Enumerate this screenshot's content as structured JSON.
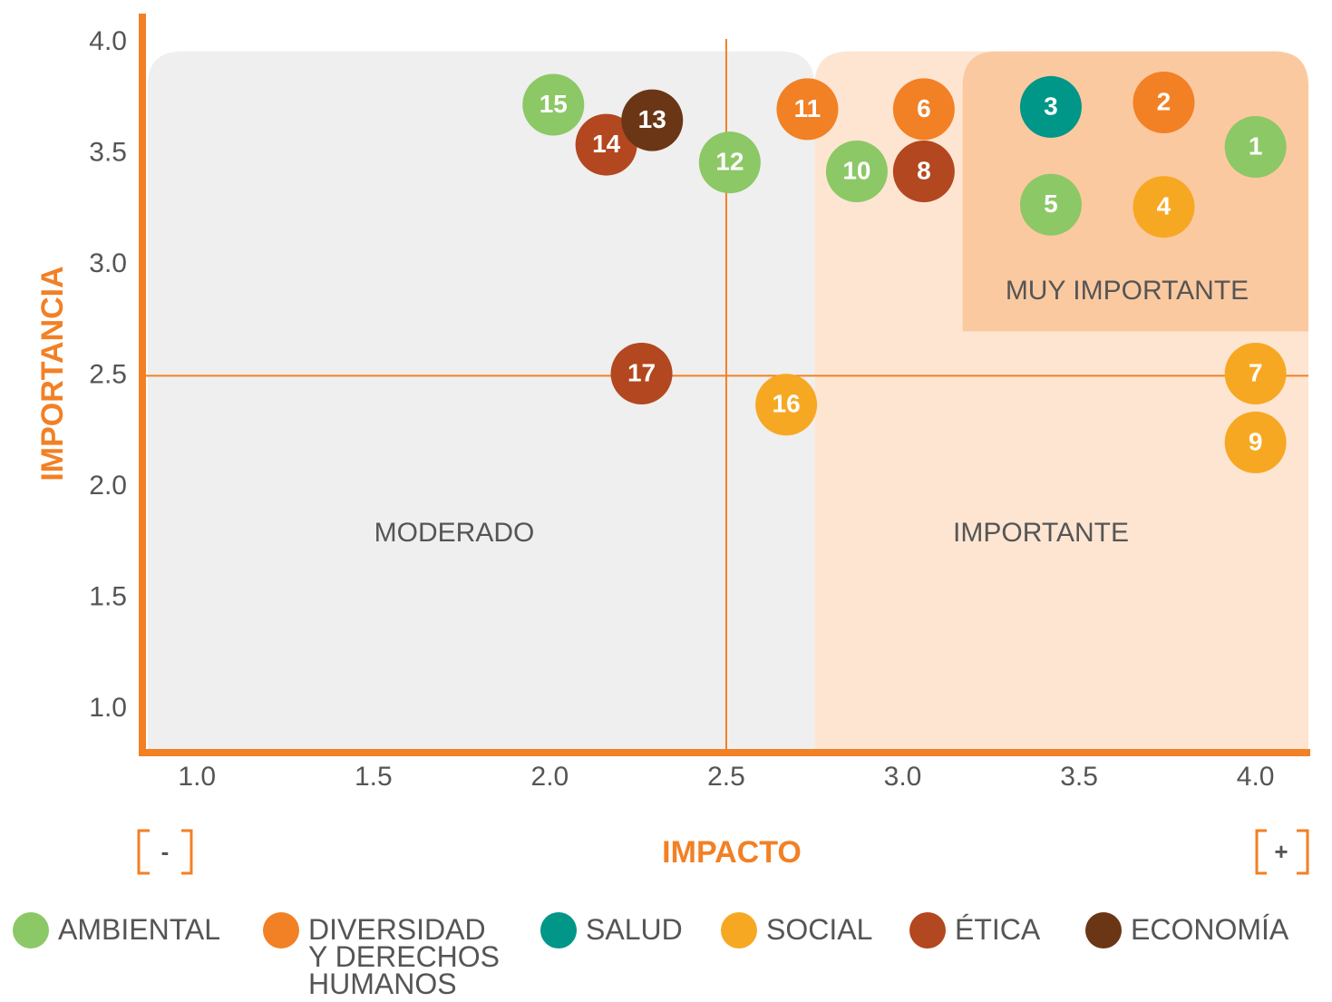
{
  "chart_data": {
    "type": "scatter",
    "x_label": "IMPACTO",
    "y_label": "IMPORTANCIA",
    "x_low_label": "-",
    "x_high_label": "+",
    "xlim": [
      0.84,
      4.15
    ],
    "ylim": [
      0.8,
      4.13
    ],
    "xticks": [
      {
        "value": 1,
        "label": "1.0"
      },
      1.5,
      {
        "value": 2,
        "label": "2.0"
      },
      2.5,
      {
        "value": 3,
        "label": "3.0"
      },
      3.5,
      {
        "value": 4,
        "label": "4.0"
      }
    ],
    "yticks": [
      {
        "value": 1,
        "label": "1.0"
      },
      1.5,
      {
        "value": 2,
        "label": "2.0"
      },
      2.5,
      {
        "value": 3,
        "label": "3.0"
      },
      3.5,
      {
        "value": 4,
        "label": "4.0"
      }
    ],
    "reference_lines": {
      "x": 2.5,
      "y": 2.5
    },
    "zones": [
      {
        "label": "MODERADO",
        "color": "#efefef",
        "xrange": [
          0.86,
          2.75
        ],
        "yrange": [
          0.8,
          3.96
        ]
      },
      {
        "label": "IMPORTANTE",
        "color": "#fde5d2",
        "xrange": [
          2.75,
          4.15
        ],
        "yrange": [
          0.8,
          3.96
        ]
      },
      {
        "label": "MUY IMPORTANTE",
        "color": "#fbc9a0",
        "xrange": [
          3.17,
          4.15
        ],
        "yrange": [
          2.7,
          3.96
        ]
      }
    ],
    "series": [
      {
        "name": "AMBIENTAL",
        "color": "#8cc866",
        "labels": [
          "1",
          "5",
          "10",
          "12",
          "15"
        ],
        "x": [
          4.0,
          3.42,
          2.87,
          2.51,
          2.01
        ],
        "y": [
          3.53,
          3.27,
          3.42,
          3.46,
          3.72
        ]
      },
      {
        "name": "DIVERSIDAD Y DERECHOS HUMANOS",
        "color": "#f28025",
        "labels": [
          "2",
          "6",
          "11"
        ],
        "x": [
          3.74,
          3.06,
          2.73
        ],
        "y": [
          3.73,
          3.7,
          3.7
        ]
      },
      {
        "name": "SALUD",
        "color": "#009688",
        "labels": [
          "3"
        ],
        "x": [
          3.42
        ],
        "y": [
          3.71
        ]
      },
      {
        "name": "SOCIAL",
        "color": "#f7a823",
        "labels": [
          "4",
          "7",
          "9",
          "16"
        ],
        "x": [
          3.74,
          4.0,
          4.0,
          2.67
        ],
        "y": [
          3.26,
          2.51,
          2.2,
          2.37
        ]
      },
      {
        "name": "ÉTICA",
        "color": "#b3471f",
        "labels": [
          "8",
          "14",
          "17"
        ],
        "x": [
          3.06,
          2.16,
          2.26
        ],
        "y": [
          3.42,
          3.54,
          2.51
        ]
      },
      {
        "name": "ECONOMÍA",
        "color": "#6b3616",
        "labels": [
          "13"
        ],
        "x": [
          2.29
        ],
        "y": [
          3.65
        ]
      }
    ]
  }
}
